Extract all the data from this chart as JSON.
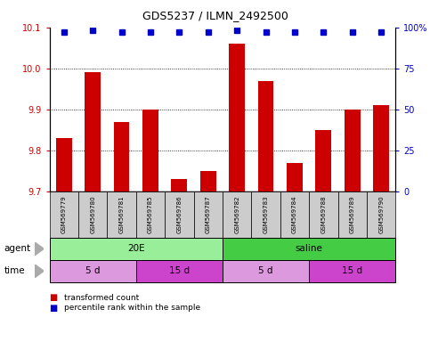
{
  "title": "GDS5237 / ILMN_2492500",
  "samples": [
    "GSM569779",
    "GSM569780",
    "GSM569781",
    "GSM569785",
    "GSM569786",
    "GSM569787",
    "GSM569782",
    "GSM569783",
    "GSM569784",
    "GSM569788",
    "GSM569789",
    "GSM569790"
  ],
  "bar_values": [
    9.83,
    9.99,
    9.87,
    9.9,
    9.73,
    9.75,
    10.06,
    9.97,
    9.77,
    9.85,
    9.9,
    9.91
  ],
  "percentile_values": [
    97,
    98,
    97,
    97,
    97,
    97,
    98,
    97,
    97,
    97,
    97,
    97
  ],
  "bar_color": "#cc0000",
  "percentile_color": "#0000cc",
  "ylim_left": [
    9.7,
    10.1
  ],
  "yticks_left": [
    9.7,
    9.8,
    9.9,
    10.0,
    10.1
  ],
  "ylim_right": [
    0,
    100
  ],
  "yticks_right": [
    0,
    25,
    50,
    75,
    100
  ],
  "yticklabels_right": [
    "0",
    "25",
    "50",
    "75",
    "100%"
  ],
  "grid_values": [
    9.8,
    9.9,
    10.0
  ],
  "agent_groups": [
    {
      "label": "20E",
      "start": 0,
      "end": 6,
      "color": "#99ee99"
    },
    {
      "label": "saline",
      "start": 6,
      "end": 12,
      "color": "#44cc44"
    }
  ],
  "time_groups": [
    {
      "label": "5 d",
      "start": 0,
      "end": 3,
      "color": "#dd99dd"
    },
    {
      "label": "15 d",
      "start": 3,
      "end": 6,
      "color": "#cc44cc"
    },
    {
      "label": "5 d",
      "start": 6,
      "end": 9,
      "color": "#dd99dd"
    },
    {
      "label": "15 d",
      "start": 9,
      "end": 12,
      "color": "#cc44cc"
    }
  ],
  "cell_bg_color": "#cccccc",
  "tick_label_color_left": "#cc0000",
  "tick_label_color_right": "#0000cc",
  "legend_items": [
    {
      "label": "transformed count",
      "color": "#cc0000"
    },
    {
      "label": "percentile rank within the sample",
      "color": "#0000cc"
    }
  ]
}
